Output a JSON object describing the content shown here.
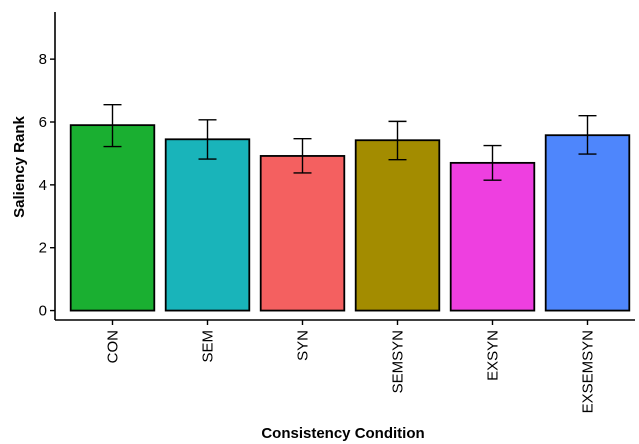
{
  "chart_data": {
    "type": "bar",
    "title": "",
    "xlabel": "Consistency Condition",
    "ylabel": "Saliency Rank",
    "categories": [
      "CON",
      "SEM",
      "SYN",
      "SEMSYN",
      "EXSYN",
      "EXSEMSYN"
    ],
    "values": [
      5.9,
      5.45,
      4.92,
      5.42,
      4.7,
      5.58
    ],
    "error_low": [
      5.22,
      4.82,
      4.38,
      4.8,
      4.15,
      4.98
    ],
    "error_high": [
      6.55,
      6.07,
      5.47,
      6.02,
      5.25,
      6.2
    ],
    "colors": [
      "#1aaf31",
      "#19b4ba",
      "#f46060",
      "#a38c00",
      "#ee3fe0",
      "#4e86fc"
    ],
    "ylim": [
      -0.3,
      9.5
    ],
    "yticks": [
      0,
      2,
      4,
      6,
      8
    ],
    "ytick_labels": [
      "0",
      "2",
      "4",
      "6",
      "8"
    ],
    "grid": false,
    "legend": "none"
  }
}
